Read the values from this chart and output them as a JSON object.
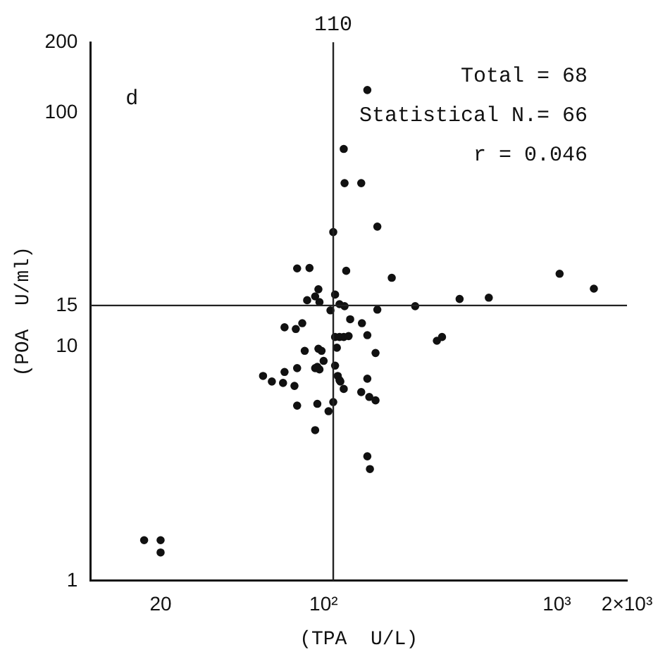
{
  "chart_data": {
    "type": "scatter",
    "xlabel": "(TPA  U/L)",
    "ylabel": "(POA  U/ml)",
    "log": "xy",
    "grid": false,
    "legend": false,
    "marker": "circle",
    "xlim": [
      10,
      2000
    ],
    "ylim": [
      1,
      200
    ],
    "xticks": [
      20,
      {
        "value": 100,
        "label": "10²"
      },
      {
        "value": 1000,
        "label": "10³"
      },
      {
        "value": 2000,
        "label": "2×10³"
      }
    ],
    "yticks": [
      1,
      10,
      15,
      100,
      200
    ],
    "ref_lines": [
      {
        "axis": "x",
        "value": 110,
        "label": "110",
        "color": "#222222"
      },
      {
        "axis": "y",
        "value": 15,
        "color": "#222222"
      }
    ],
    "annotations": [
      "d",
      "Total = 68",
      "Statistical N.= 66",
      "r = 0.046"
    ],
    "series": [
      {
        "color": "#111111",
        "x": [
          170,
          110,
          77,
          87,
          125,
          196,
          95,
          112,
          92,
          85,
          96,
          117,
          123,
          107,
          170,
          247,
          383,
          68,
          76,
          81,
          130,
          146,
          112,
          117,
          122,
          128,
          154,
          306,
          322,
          83,
          95,
          98,
          114,
          167,
          100,
          77,
          92,
          94,
          96,
          112,
          55,
          68,
          60,
          67,
          75,
          115,
          117,
          118,
          122,
          154,
          145,
          157,
          167,
          77,
          94,
          110,
          105,
          92,
          154,
          158,
          511,
          1028,
          1442,
          154,
          122,
          123,
          145,
          17,
          20,
          20
        ],
        "values": [
          32.6,
          30.9,
          21.6,
          21.7,
          21.1,
          19.7,
          17.6,
          16.7,
          16.4,
          15.8,
          15.5,
          15.2,
          14.9,
          14.3,
          14.4,
          14.9,
          16,
          12.1,
          11.9,
          12.6,
          13.1,
          12.6,
          11,
          11,
          11,
          11.1,
          11.2,
          10.6,
          11,
          9.6,
          9.8,
          9.6,
          9.9,
          9.4,
          8.7,
          8.1,
          8.1,
          8.2,
          8,
          8.3,
          7.5,
          7.8,
          7.1,
          7,
          6.8,
          7.5,
          7.2,
          7.1,
          6.6,
          7.3,
          6.4,
          6.1,
          5.9,
          5.6,
          5.7,
          5.8,
          5.3,
          4.4,
          3.4,
          3,
          16.2,
          20.5,
          17.7,
          125,
          70,
          50,
          50,
          1.49,
          1.49,
          1.32
        ]
      }
    ]
  }
}
